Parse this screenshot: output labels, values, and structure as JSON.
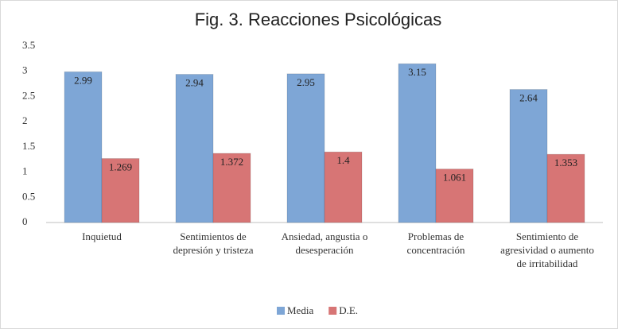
{
  "chart_data": {
    "type": "bar",
    "title": "Fig. 3. Reacciones Psicológicas",
    "categories": [
      "Inquietud",
      "Sentimientos de depresión y tristeza",
      "Ansiedad, angustia o desesperación",
      "Problemas de concentración",
      "Sentimiento de agresividad o aumento de irritabilidad"
    ],
    "series": [
      {
        "name": "Media",
        "color": "#7ea6d6",
        "values": [
          2.99,
          2.94,
          2.95,
          3.15,
          2.64
        ]
      },
      {
        "name": "D.E.",
        "color": "#d77575",
        "values": [
          1.269,
          1.372,
          1.4,
          1.061,
          1.353
        ]
      }
    ],
    "ylim": [
      0,
      3.5
    ],
    "yticks": [
      0,
      0.5,
      1,
      1.5,
      2,
      2.5,
      3,
      3.5
    ],
    "grid": false,
    "legend": "bottom"
  }
}
